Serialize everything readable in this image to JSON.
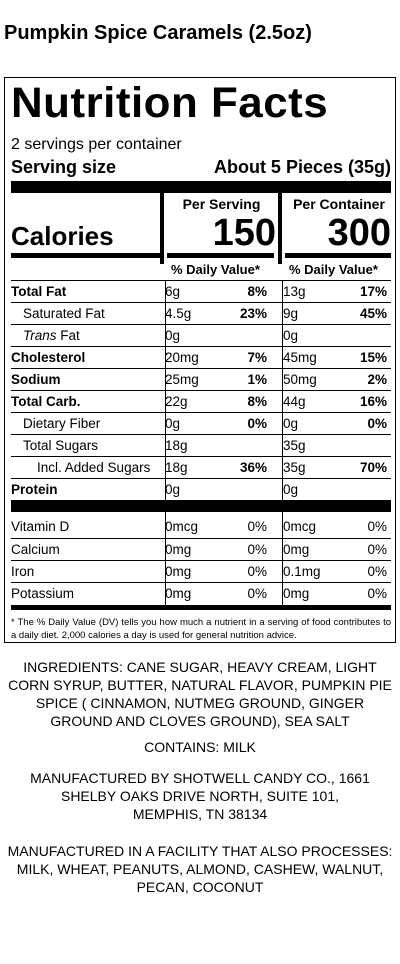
{
  "product_title": "Pumpkin Spice Caramels (2.5oz)",
  "nutrition": {
    "heading": "Nutrition Facts",
    "servings_per_container": "2 servings per container",
    "serving_size_label": "Serving size",
    "serving_size_value": "About 5 Pieces (35g)",
    "per_serving_label": "Per Serving",
    "per_container_label": "Per Container",
    "calories_label": "Calories",
    "calories_per_serving": "150",
    "calories_per_container": "300",
    "dv_header": "% Daily Value*",
    "rows": [
      {
        "name": "Total Fat",
        "amt1": "6g",
        "pct1": "8%",
        "amt2": "13g",
        "pct2": "17%"
      },
      {
        "name": "Saturated Fat",
        "amt1": "4.5g",
        "pct1": "23%",
        "amt2": "9g",
        "pct2": "45%"
      },
      {
        "name_italic": "Trans",
        "name_rest": " Fat",
        "amt1": "0g",
        "pct1": "",
        "amt2": "0g",
        "pct2": ""
      },
      {
        "name": "Cholesterol",
        "amt1": "20mg",
        "pct1": "7%",
        "amt2": "45mg",
        "pct2": "15%"
      },
      {
        "name": "Sodium",
        "amt1": "25mg",
        "pct1": "1%",
        "amt2": "50mg",
        "pct2": "2%"
      },
      {
        "name": "Total Carb.",
        "amt1": "22g",
        "pct1": "8%",
        "amt2": "44g",
        "pct2": "16%"
      },
      {
        "name": "Dietary Fiber",
        "amt1": "0g",
        "pct1": "0%",
        "amt2": "0g",
        "pct2": "0%"
      },
      {
        "name": "Total Sugars",
        "amt1": "18g",
        "pct1": "",
        "amt2": "35g",
        "pct2": ""
      },
      {
        "name": "Incl. Added Sugars",
        "amt1": "18g",
        "pct1": "36%",
        "amt2": "35g",
        "pct2": "70%"
      },
      {
        "name": "Protein",
        "amt1": "0g",
        "pct1": "",
        "amt2": "0g",
        "pct2": ""
      }
    ],
    "vitamins": [
      {
        "name": "Vitamin D",
        "amt1": "0mcg",
        "pct1": "0%",
        "amt2": "0mcg",
        "pct2": "0%"
      },
      {
        "name": "Calcium",
        "amt1": "0mg",
        "pct1": "0%",
        "amt2": "0mg",
        "pct2": "0%"
      },
      {
        "name": "Iron",
        "amt1": "0mg",
        "pct1": "0%",
        "amt2": "0.1mg",
        "pct2": "0%"
      },
      {
        "name": "Potassium",
        "amt1": "0mg",
        "pct1": "0%",
        "amt2": "0mg",
        "pct2": "0%"
      }
    ],
    "footnote": "* The % Daily Value (DV) tells you how much a nutrient in a serving of food contributes to a daily diet. 2,000 calories a day is used for general nutrition advice."
  },
  "ingredients": "INGREDIENTS: CANE SUGAR, HEAVY CREAM, LIGHT CORN SYRUP, BUTTER, NATURAL FLAVOR, PUMPKIN PIE SPICE ( CINNAMON, NUTMEG GROUND, GINGER GROUND AND CLOVES GROUND), SEA SALT",
  "contains": "CONTAINS: MILK",
  "manufacturer": "MANUFACTURED BY SHOTWELL CANDY CO., 1661 SHELBY OAKS DRIVE NORTH, SUITE 101, MEMPHIS, TN 38134",
  "facility": "MANUFACTURED IN A FACILITY THAT ALSO PROCESSES: MILK, WHEAT, PEANUTS, ALMOND, CASHEW, WALNUT, PECAN, COCONUT"
}
